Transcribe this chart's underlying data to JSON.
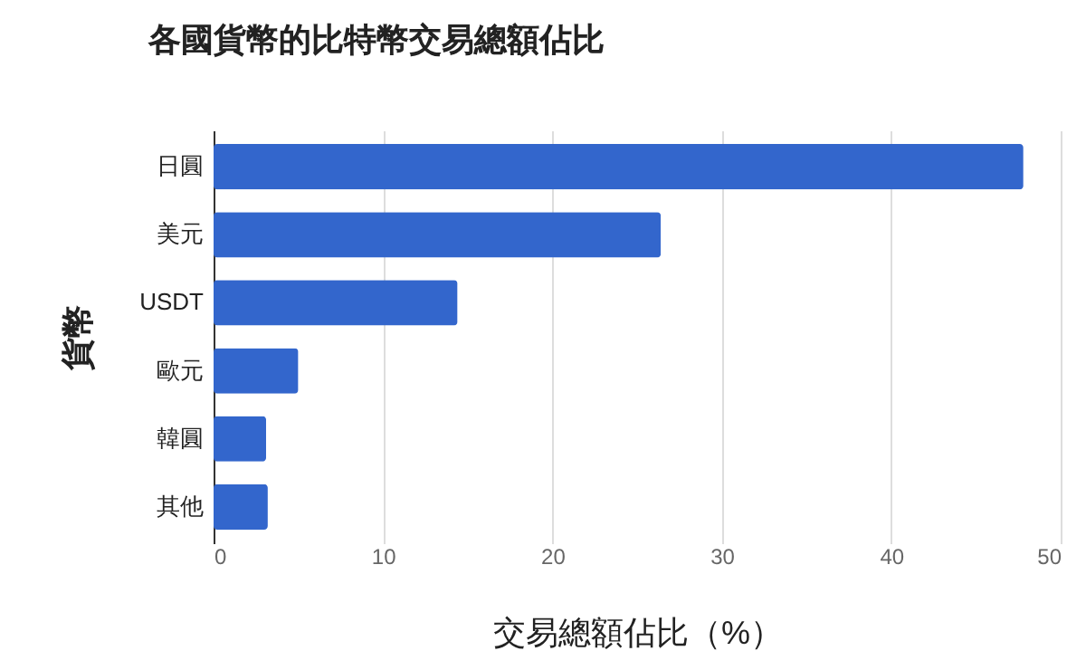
{
  "chart_data": {
    "type": "bar",
    "orientation": "horizontal",
    "title": "各國貨幣的比特幣交易總額佔比",
    "xlabel": "交易總額佔比（%）",
    "ylabel": "貨幣",
    "categories": [
      "日圓",
      "美元",
      "USDT",
      "歐元",
      "韓圓",
      "其他"
    ],
    "values": [
      47.8,
      26.4,
      14.4,
      5.0,
      3.1,
      3.2
    ],
    "color": "#3366cc",
    "xlim": [
      0,
      50
    ],
    "xticks": [
      0,
      10,
      20,
      30,
      40,
      50
    ],
    "grid": "x"
  }
}
